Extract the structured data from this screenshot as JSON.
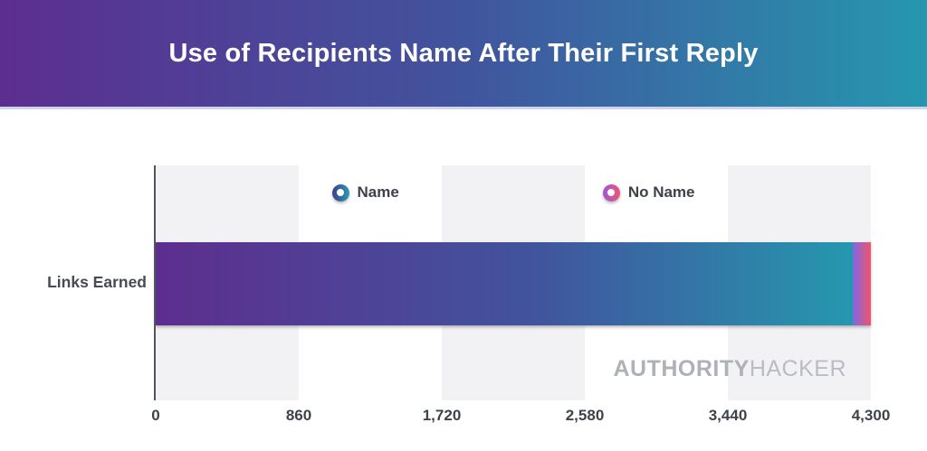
{
  "header": {
    "title": "Use of Recipients Name After Their First Reply"
  },
  "row_label": "Links Earned",
  "legend": {
    "items": [
      {
        "label": "Name",
        "icon": "donut-ring-icon",
        "gradient": [
          "#3d3d8f",
          "#2b9ab3"
        ]
      },
      {
        "label": "No Name",
        "icon": "donut-ring-icon",
        "gradient": [
          "#a055d8",
          "#f2536e"
        ]
      }
    ]
  },
  "watermark": {
    "bold": "AUTHORITY",
    "light": "HACKER"
  },
  "colors": {
    "header_gradient_start": "#5c2e90",
    "header_gradient_end": "#2697ae",
    "bar_name_start": "#5d2e8f",
    "bar_name_end": "#2598ae",
    "bar_noname_start": "#7a6be4",
    "bar_noname_end": "#f2536e",
    "stripe_band": "#f2f2f4",
    "axis_line": "#54555a",
    "tick_text": "#3e424b",
    "title_text": "#ffffff"
  },
  "chart_data": {
    "type": "bar",
    "orientation": "horizontal",
    "stacked": true,
    "title": "Use of Recipients Name After Their First Reply",
    "categories": [
      "Links Earned"
    ],
    "series": [
      {
        "name": "Name",
        "values": [
          4190
        ]
      },
      {
        "name": "No Name",
        "values": [
          110
        ]
      }
    ],
    "xlabel": "",
    "ylabel": "",
    "xlim": [
      0,
      4300
    ],
    "tick_interval": 860,
    "tick_labels": [
      "0",
      "860",
      "1,720",
      "2,580",
      "3,440",
      "4,300"
    ],
    "legend_position": "top-inside",
    "grid": "alternating-vertical-bands"
  }
}
